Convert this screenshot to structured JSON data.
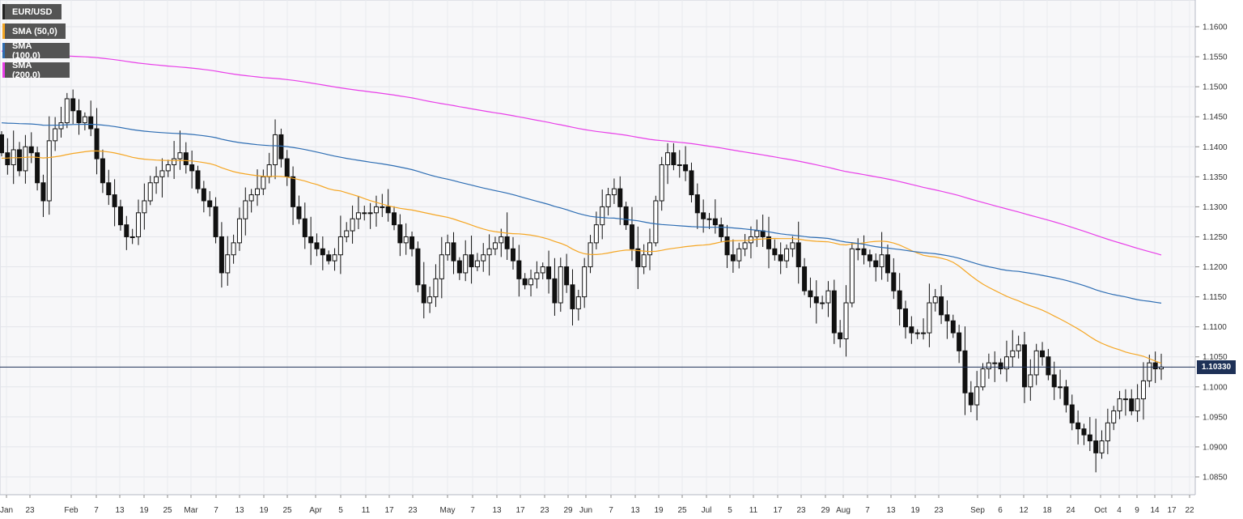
{
  "legend": [
    {
      "label": "EUR/USD",
      "color": "#222222"
    },
    {
      "label": "SMA (50,0)",
      "color": "#f5a623"
    },
    {
      "label": "SMA (100,0)",
      "color": "#2d6db3"
    },
    {
      "label": "SMA (200,0)",
      "color": "#e83ee8"
    }
  ],
  "current_price_label": "1.10330",
  "chart_data": {
    "type": "candlestick",
    "title": "EUR/USD",
    "ylim": [
      1.084,
      1.164
    ],
    "y_ticks": [
      "1.1600",
      "1.1550",
      "1.1500",
      "1.1450",
      "1.1400",
      "1.1350",
      "1.1300",
      "1.1250",
      "1.1200",
      "1.1150",
      "1.1100",
      "1.1050",
      "1.1000",
      "1.0950",
      "1.0900",
      "1.0850"
    ],
    "x_ticks": [
      "Jan",
      "23",
      "Feb",
      "7",
      "13",
      "19",
      "25",
      "Mar",
      "7",
      "13",
      "19",
      "25",
      "Apr",
      "5",
      "11",
      "17",
      "23",
      "May",
      "7",
      "13",
      "17",
      "23",
      "29",
      "Jun",
      "7",
      "13",
      "19",
      "25",
      "Jul",
      "5",
      "11",
      "17",
      "23",
      "29",
      "Aug",
      "7",
      "13",
      "19",
      "23",
      "Sep",
      "6",
      "12",
      "18",
      "24",
      "Oct",
      "4",
      "9",
      "14",
      "17",
      "22"
    ],
    "current_price": 1.1033,
    "candles_close": [
      1.139,
      1.137,
      1.1395,
      1.136,
      1.14,
      1.139,
      1.134,
      1.131,
      1.141,
      1.143,
      1.144,
      1.148,
      1.146,
      1.144,
      1.145,
      1.143,
      1.138,
      1.134,
      1.132,
      1.13,
      1.127,
      1.125,
      1.125,
      1.129,
      1.131,
      1.134,
      1.135,
      1.136,
      1.137,
      1.138,
      1.139,
      1.137,
      1.136,
      1.133,
      1.131,
      1.13,
      1.125,
      1.119,
      1.122,
      1.124,
      1.128,
      1.131,
      1.132,
      1.133,
      1.135,
      1.137,
      1.142,
      1.138,
      1.135,
      1.13,
      1.128,
      1.125,
      1.124,
      1.123,
      1.122,
      1.121,
      1.122,
      1.125,
      1.126,
      1.128,
      1.129,
      1.129,
      1.129,
      1.13,
      1.13,
      1.129,
      1.127,
      1.124,
      1.125,
      1.123,
      1.117,
      1.114,
      1.115,
      1.118,
      1.122,
      1.124,
      1.121,
      1.119,
      1.122,
      1.12,
      1.121,
      1.122,
      1.123,
      1.124,
      1.125,
      1.123,
      1.121,
      1.118,
      1.117,
      1.118,
      1.119,
      1.12,
      1.118,
      1.114,
      1.12,
      1.117,
      1.113,
      1.115,
      1.12,
      1.124,
      1.127,
      1.13,
      1.132,
      1.133,
      1.13,
      1.127,
      1.123,
      1.12,
      1.122,
      1.124,
      1.131,
      1.137,
      1.139,
      1.137,
      1.137,
      1.136,
      1.132,
      1.129,
      1.128,
      1.128,
      1.127,
      1.125,
      1.122,
      1.121,
      1.123,
      1.124,
      1.125,
      1.126,
      1.125,
      1.123,
      1.122,
      1.121,
      1.123,
      1.124,
      1.12,
      1.116,
      1.115,
      1.114,
      1.114,
      1.116,
      1.109,
      1.108,
      1.114,
      1.123,
      1.123,
      1.122,
      1.121,
      1.12,
      1.122,
      1.119,
      1.116,
      1.113,
      1.11,
      1.109,
      1.109,
      1.109,
      1.114,
      1.115,
      1.112,
      1.111,
      1.109,
      1.106,
      1.099,
      1.097,
      1.1,
      1.103,
      1.104,
      1.104,
      1.103,
      1.105,
      1.106,
      1.107,
      1.1,
      1.102,
      1.106,
      1.105,
      1.102,
      1.1,
      1.1,
      1.097,
      1.094,
      1.093,
      1.092,
      1.091,
      1.089,
      1.091,
      1.094,
      1.096,
      1.098,
      1.098,
      1.096,
      1.098,
      1.101,
      1.104,
      1.103,
      1.1033
    ]
  }
}
